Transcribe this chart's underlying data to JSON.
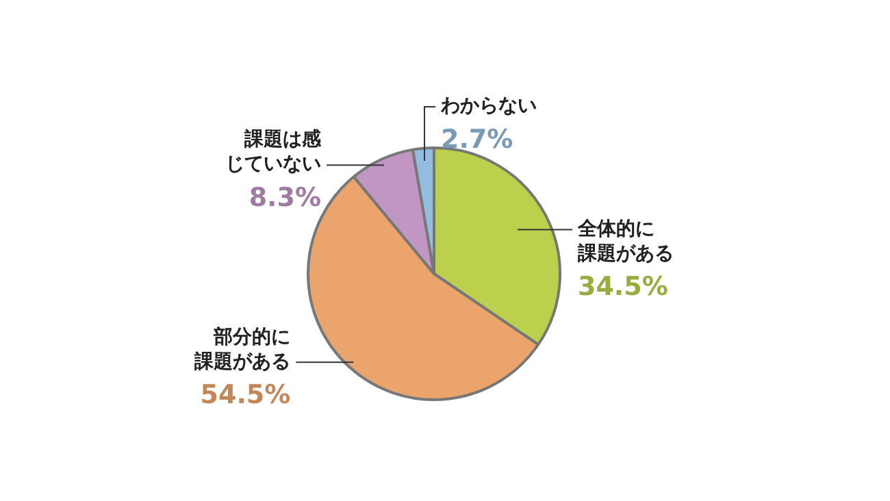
{
  "chart_data": {
    "type": "pie",
    "categories": [
      "全体的に課題がある",
      "部分的に課題がある",
      "課題は感じていない",
      "わからない"
    ],
    "values": [
      34.5,
      54.5,
      8.3,
      2.7
    ],
    "colors": [
      "#bdd04e",
      "#eba46c",
      "#c196c3",
      "#93bde0"
    ],
    "value_labels": [
      "34.5%",
      "54.5%",
      "8.3%",
      "2.7%"
    ],
    "legend": false
  }
}
